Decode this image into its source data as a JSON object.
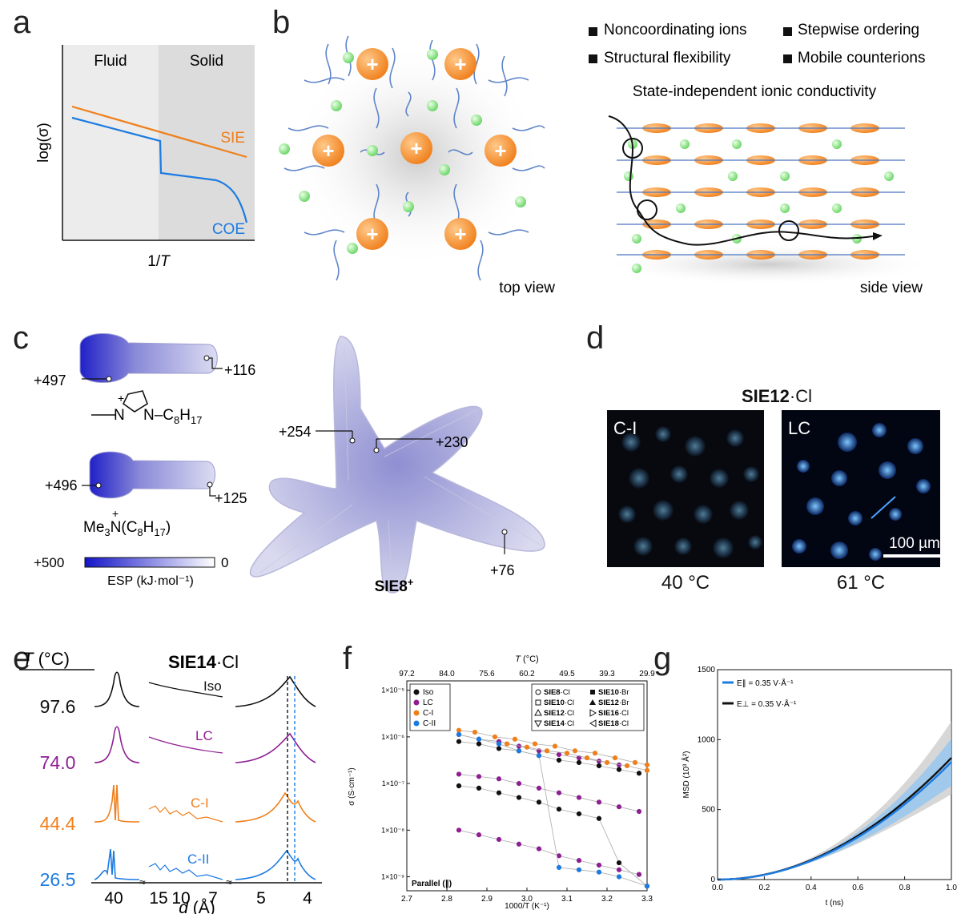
{
  "panel_labels": [
    "a",
    "b",
    "c",
    "d",
    "e",
    "f",
    "g"
  ],
  "panel_a": {
    "fluid": "Fluid",
    "solid": "Solid",
    "ylabel": "log(σ)",
    "xlabel_pre": "1/",
    "xlabel_var": "T",
    "sie": "SIE",
    "coe": "COE",
    "sie_color": "#f07f1b",
    "coe_color": "#1c7be0"
  },
  "panel_b": {
    "features": [
      "Noncoordinating ions",
      "Stepwise ordering",
      "Structural flexibility",
      "Mobile counterions"
    ],
    "heading": "State-independent ionic conductivity",
    "top_view": "top view",
    "side_view": "side view",
    "plus": "+"
  },
  "panel_c": {
    "imid_left": "+497",
    "imid_right": "+116",
    "imid_formula_a": "N",
    "imid_formula_b": "N–C",
    "imid_sub_a": "8",
    "imid_formula_c": "H",
    "imid_sub_b": "17",
    "amm_left": "+496",
    "amm_right": "+125",
    "amm_formula_a": "Me",
    "amm_sub_a": "3",
    "amm_formula_b": "N(C",
    "amm_sub_b": "8",
    "amm_formula_c": "H",
    "amm_sub_c": "17",
    "amm_formula_d": ")",
    "esp_max": "+500",
    "esp_min": "0",
    "esp_label": "ESP (kJ·mol⁻¹)",
    "sie_labels": [
      "+254",
      "+230",
      "+76"
    ],
    "sie_name": "SIE8",
    "sie_charge": "+"
  },
  "panel_d": {
    "title_bold": "SIE12",
    "title_rest": "·Cl",
    "img1_label": "C-I",
    "img2_label": "LC",
    "scale": "100 µm",
    "temp1": "40 °C",
    "temp2": "61 °C"
  },
  "panel_e": {
    "t_header_var": "T",
    "t_header_unit": " (°C)",
    "title_bold": "SIE14",
    "title_rest": "·Cl",
    "rows": [
      {
        "temp": "97.6",
        "phase": "Iso",
        "color": "#111111"
      },
      {
        "temp": "74.0",
        "phase": "LC",
        "color": "#8e1f92"
      },
      {
        "temp": "44.4",
        "phase": "C-I",
        "color": "#f07f1b"
      },
      {
        "temp": "26.5",
        "phase": "C-II",
        "color": "#1c7be0"
      }
    ],
    "xticks": [
      "40",
      "15",
      "10",
      "7",
      "5",
      "4"
    ],
    "xlabel_var": "d",
    "xlabel_unit": " (Å)"
  },
  "panel_f": {
    "top_label_var": "T",
    "top_label_unit": " (°C)",
    "top_ticks": [
      "97.2",
      "84.0",
      "75.6",
      "60.2",
      "49.5",
      "39.3",
      "29.9"
    ],
    "bottom_ticks": [
      "2.7",
      "2.8",
      "2.9",
      "3.0",
      "3.1",
      "3.2",
      "3.3"
    ],
    "y_ticks": [
      "1×10⁻⁹",
      "1×10⁻⁸",
      "1×10⁻⁷",
      "1×10⁻⁶",
      "1×10⁻⁵"
    ],
    "ylabel": "σ (S·cm⁻¹)",
    "xlabel": "1000/T (K⁻¹)",
    "corner": "Parallel (∥)",
    "phase_legend": [
      {
        "label": "Iso",
        "color": "#111111"
      },
      {
        "label": "LC",
        "color": "#8e1f92"
      },
      {
        "label": "C-I",
        "color": "#f07f1b"
      },
      {
        "label": "C-II",
        "color": "#1c7be0"
      }
    ],
    "compound_legend": [
      {
        "bold": "SIE8",
        "rest": "·Cl",
        "marker": "circle-open"
      },
      {
        "bold": "SIE10",
        "rest": "·Br",
        "marker": "square-filled"
      },
      {
        "bold": "SIE10",
        "rest": "·Cl",
        "marker": "square-open"
      },
      {
        "bold": "SIE12",
        "rest": "·Br",
        "marker": "triangle-filled"
      },
      {
        "bold": "SIE12",
        "rest": "·Cl",
        "marker": "triangle-open"
      },
      {
        "bold": "SIE16",
        "rest": "·Cl",
        "marker": "triangle-right-open"
      },
      {
        "bold": "SIE14",
        "rest": "·Cl",
        "marker": "triangle-down-open"
      },
      {
        "bold": "SIE18",
        "rest": "·Cl",
        "marker": "triangle-left-open"
      }
    ]
  },
  "panel_g": {
    "y_ticks": [
      "0",
      "500",
      "1000",
      "1500"
    ],
    "x_ticks": [
      "0.0",
      "0.2",
      "0.4",
      "0.6",
      "0.8",
      "1.0"
    ],
    "ylabel": "MSD (10³ Å²)",
    "xlabel": "t (ns)",
    "legend": [
      {
        "label": "E∥ = 0.35 V·Å⁻¹",
        "color": "#1c7be0"
      },
      {
        "label": "E⊥ = 0.35 V·Å⁻¹",
        "color": "#111111"
      }
    ]
  },
  "chart_data": [
    {
      "type": "line",
      "title": "a",
      "xlabel": "1/T",
      "ylabel": "log(σ)",
      "series": [
        {
          "name": "SIE",
          "x": [
            0,
            1
          ],
          "values": [
            0.88,
            0.45
          ]
        },
        {
          "name": "COE",
          "x": [
            0,
            0.48,
            0.48,
            0.85,
            1.0
          ],
          "values": [
            0.77,
            0.56,
            0.33,
            0.3,
            0.05
          ]
        }
      ]
    },
    {
      "type": "scatter",
      "title": "f",
      "xlabel": "1000/T (K⁻¹)",
      "ylabel": "σ (S·cm⁻¹)",
      "xlim": [
        2.7,
        3.3
      ],
      "ylim": [
        -9.3,
        -4.8
      ],
      "yscale": "log10",
      "series": [
        {
          "name": "SIE8·Cl",
          "color": "#f07f1b",
          "x": [
            2.83,
            2.87,
            2.92,
            2.97,
            3.02,
            3.07,
            3.12,
            3.17,
            3.22,
            3.27,
            3.3
          ],
          "values": [
            -5.86,
            -5.9,
            -6.0,
            -6.05,
            -6.15,
            -6.2,
            -6.3,
            -6.35,
            -6.45,
            -6.55,
            -6.6
          ]
        },
        {
          "name": "SIE10·Br",
          "color": "#8e1f92",
          "x": [
            2.83,
            2.88,
            2.93,
            2.98,
            3.03,
            3.08,
            3.13,
            3.18,
            3.23
          ],
          "values": [
            -5.95,
            -6.05,
            -6.1,
            -6.2,
            -6.3,
            -6.38,
            -6.45,
            -6.52,
            -6.6
          ]
        },
        {
          "name": "SIE12·Br",
          "color": "#111111",
          "x": [
            2.83,
            2.88,
            2.93,
            2.98,
            3.03,
            3.08,
            3.13,
            3.18,
            3.23,
            3.28
          ],
          "values": [
            -6.1,
            -6.15,
            -6.25,
            -6.3,
            -6.4,
            -6.5,
            -6.55,
            -6.62,
            -6.7,
            -6.78
          ]
        },
        {
          "name": "SIE14·Cl",
          "color": "#f07f1b",
          "x": [
            2.95,
            3.0,
            3.05,
            3.1,
            3.15,
            3.2,
            3.25,
            3.3
          ],
          "values": [
            -6.15,
            -6.22,
            -6.3,
            -6.35,
            -6.45,
            -6.55,
            -6.62,
            -6.72
          ]
        },
        {
          "name": "SIE10·Cl",
          "color": "#8e1f92",
          "x": [
            2.83,
            2.88,
            2.93,
            2.98,
            3.03,
            3.08,
            3.13,
            3.18,
            3.23,
            3.28
          ],
          "values": [
            -6.8,
            -6.85,
            -6.9,
            -7.0,
            -7.1,
            -7.2,
            -7.3,
            -7.4,
            -7.5,
            -7.6
          ]
        },
        {
          "name": "SIE16·Cl",
          "color": "#111111",
          "x": [
            2.83,
            2.88,
            2.93,
            2.98,
            3.03,
            3.08,
            3.13,
            3.18,
            3.23,
            3.3
          ],
          "values": [
            -7.05,
            -7.1,
            -7.2,
            -7.3,
            -7.4,
            -7.55,
            -7.65,
            -7.75,
            -8.7,
            -9.2
          ]
        },
        {
          "name": "SIE12·Cl",
          "color": "#8e1f92",
          "x": [
            2.83,
            2.88,
            2.93,
            2.98,
            3.03,
            3.08,
            3.13,
            3.18,
            3.23,
            3.28
          ],
          "values": [
            -8.0,
            -8.1,
            -8.2,
            -8.3,
            -8.4,
            -8.55,
            -8.65,
            -8.75,
            -8.85,
            -8.95
          ]
        },
        {
          "name": "SIE18·Cl",
          "color": "#1c7be0",
          "x": [
            2.83,
            2.88,
            2.93,
            2.98,
            3.03,
            3.08,
            3.13,
            3.18,
            3.23,
            3.3
          ],
          "values": [
            -5.95,
            -6.05,
            -6.15,
            -6.3,
            -6.4,
            -8.8,
            -8.85,
            -8.9,
            -9.0,
            -9.2
          ]
        }
      ]
    },
    {
      "type": "line",
      "title": "g",
      "xlabel": "t (ns)",
      "ylabel": "MSD (10³ Å²)",
      "xlim": [
        0,
        1
      ],
      "ylim": [
        0,
        1500
      ],
      "series": [
        {
          "name": "E∥ = 0.35 V·Å⁻¹",
          "x": [
            0,
            0.2,
            0.4,
            0.6,
            0.8,
            1.0
          ],
          "values": [
            0,
            25,
            130,
            320,
            570,
            840
          ]
        },
        {
          "name": "E⊥ = 0.35 V·Å⁻¹",
          "x": [
            0,
            0.2,
            0.4,
            0.6,
            0.8,
            1.0
          ],
          "values": [
            0,
            35,
            160,
            370,
            620,
            870
          ]
        }
      ]
    }
  ]
}
